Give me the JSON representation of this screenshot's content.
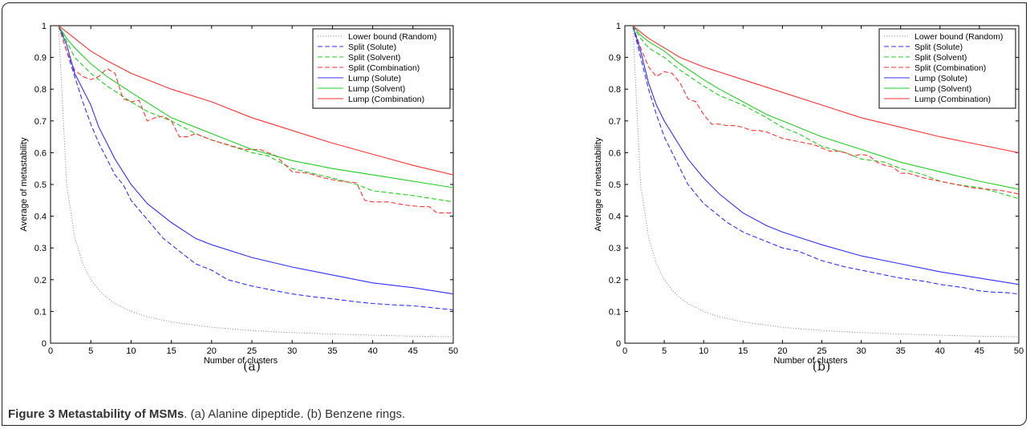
{
  "figure": {
    "caption_label": "Figure 3",
    "caption_title": "Metastability of MSMs",
    "caption_text": ". (a) Alanine dipeptide. (b) Benzene rings."
  },
  "legend_labels": [
    "Lower bound (Random)",
    "Split (Solute)",
    "Split (Solvent)",
    "Split (Combination)",
    "Lump (Solute)",
    "Lump (Solvent)",
    "Lump (Combination)"
  ],
  "colors": {
    "random": "#888888",
    "solute": "#3030ff",
    "solvent": "#22cc22",
    "combination": "#ff3333"
  },
  "chart_data": [
    {
      "type": "line",
      "panel_label": "(a)",
      "xlabel": "Number of clusters",
      "ylabel": "Average of metastability",
      "xlim": [
        0,
        50
      ],
      "ylim": [
        0,
        1
      ],
      "xticks": [
        "0",
        "5",
        "10",
        "15",
        "20",
        "25",
        "30",
        "35",
        "40",
        "45",
        "50"
      ],
      "yticks": [
        "0",
        "0.1",
        "0.2",
        "0.3",
        "0.4",
        "0.5",
        "0.6",
        "0.7",
        "0.8",
        "0.9",
        "1"
      ],
      "legend_position": "top-right",
      "series": [
        {
          "name": "Lower bound (Random)",
          "style": "dotted",
          "color": "#888888",
          "x": [
            1,
            2,
            3,
            4,
            5,
            6,
            7,
            8,
            10,
            12,
            15,
            20,
            25,
            30,
            35,
            40,
            45,
            50
          ],
          "y": [
            1,
            0.5,
            0.333,
            0.25,
            0.2,
            0.167,
            0.143,
            0.125,
            0.1,
            0.083,
            0.067,
            0.05,
            0.04,
            0.033,
            0.029,
            0.025,
            0.022,
            0.02
          ]
        },
        {
          "name": "Split (Solute)",
          "style": "dashed",
          "color": "#3030ff",
          "x": [
            1,
            2,
            3,
            4,
            5,
            6,
            7,
            8,
            9,
            10,
            12,
            14,
            16,
            18,
            20,
            22,
            25,
            28,
            30,
            33,
            35,
            38,
            40,
            43,
            45,
            48,
            50
          ],
          "y": [
            1,
            0.92,
            0.84,
            0.76,
            0.69,
            0.63,
            0.58,
            0.53,
            0.5,
            0.45,
            0.39,
            0.33,
            0.29,
            0.25,
            0.23,
            0.2,
            0.18,
            0.165,
            0.155,
            0.145,
            0.14,
            0.13,
            0.125,
            0.12,
            0.118,
            0.11,
            0.105
          ]
        },
        {
          "name": "Split (Solvent)",
          "style": "dashed",
          "color": "#22cc22",
          "x": [
            1,
            2,
            3,
            5,
            7,
            10,
            12,
            15,
            18,
            20,
            25,
            27,
            30,
            35,
            38,
            40,
            45,
            50
          ],
          "y": [
            1,
            0.95,
            0.9,
            0.85,
            0.81,
            0.76,
            0.73,
            0.7,
            0.66,
            0.64,
            0.6,
            0.59,
            0.55,
            0.52,
            0.5,
            0.48,
            0.465,
            0.445
          ]
        },
        {
          "name": "Split (Combination)",
          "style": "dashed",
          "color": "#ff3333",
          "x": [
            1,
            2,
            3,
            4,
            5,
            6,
            7,
            8,
            9,
            10,
            11,
            12,
            13,
            14,
            15,
            16,
            17,
            18,
            20,
            22,
            24,
            26,
            27,
            28,
            30,
            32,
            34,
            36,
            38,
            39,
            40,
            42,
            44,
            46,
            47,
            48,
            50
          ],
          "y": [
            1,
            0.92,
            0.86,
            0.84,
            0.83,
            0.84,
            0.865,
            0.85,
            0.77,
            0.76,
            0.765,
            0.7,
            0.71,
            0.715,
            0.7,
            0.65,
            0.65,
            0.66,
            0.64,
            0.625,
            0.61,
            0.61,
            0.6,
            0.59,
            0.54,
            0.535,
            0.52,
            0.51,
            0.505,
            0.45,
            0.445,
            0.445,
            0.435,
            0.43,
            0.43,
            0.41,
            0.41
          ]
        },
        {
          "name": "Lump (Solute)",
          "style": "solid",
          "color": "#3030ff",
          "x": [
            1,
            2,
            3,
            4,
            5,
            6,
            7,
            8,
            10,
            12,
            15,
            18,
            20,
            25,
            30,
            35,
            40,
            45,
            50
          ],
          "y": [
            1,
            0.94,
            0.85,
            0.8,
            0.75,
            0.68,
            0.63,
            0.58,
            0.5,
            0.44,
            0.38,
            0.33,
            0.31,
            0.27,
            0.24,
            0.215,
            0.19,
            0.175,
            0.155
          ]
        },
        {
          "name": "Lump (Solvent)",
          "style": "solid",
          "color": "#22cc22",
          "x": [
            1,
            2,
            3,
            5,
            7,
            10,
            15,
            20,
            25,
            30,
            35,
            40,
            45,
            50
          ],
          "y": [
            1,
            0.96,
            0.93,
            0.88,
            0.84,
            0.79,
            0.71,
            0.66,
            0.61,
            0.575,
            0.55,
            0.53,
            0.51,
            0.49
          ]
        },
        {
          "name": "Lump (Combination)",
          "style": "solid",
          "color": "#ff3333",
          "x": [
            1,
            2,
            3,
            5,
            7,
            10,
            15,
            20,
            25,
            30,
            35,
            40,
            45,
            50
          ],
          "y": [
            1,
            0.98,
            0.96,
            0.92,
            0.89,
            0.85,
            0.8,
            0.76,
            0.71,
            0.67,
            0.63,
            0.595,
            0.56,
            0.53
          ]
        }
      ]
    },
    {
      "type": "line",
      "panel_label": "(b)",
      "xlabel": "Number of clusters",
      "ylabel": "Average of metastability",
      "xlim": [
        0,
        50
      ],
      "ylim": [
        0,
        1
      ],
      "xticks": [
        "0",
        "5",
        "10",
        "15",
        "20",
        "25",
        "30",
        "35",
        "40",
        "45",
        "50"
      ],
      "yticks": [
        "0",
        "0.1",
        "0.2",
        "0.3",
        "0.4",
        "0.5",
        "0.6",
        "0.7",
        "0.8",
        "0.9",
        "1"
      ],
      "legend_position": "top-right",
      "series": [
        {
          "name": "Lower bound (Random)",
          "style": "dotted",
          "color": "#888888",
          "x": [
            1,
            2,
            3,
            4,
            5,
            6,
            7,
            8,
            10,
            12,
            15,
            20,
            25,
            30,
            35,
            40,
            45,
            50
          ],
          "y": [
            1,
            0.5,
            0.333,
            0.25,
            0.2,
            0.167,
            0.143,
            0.125,
            0.1,
            0.083,
            0.067,
            0.05,
            0.04,
            0.033,
            0.029,
            0.025,
            0.022,
            0.02
          ]
        },
        {
          "name": "Split (Solute)",
          "style": "dashed",
          "color": "#3030ff",
          "x": [
            1,
            2,
            3,
            4,
            5,
            6,
            7,
            8,
            9,
            10,
            12,
            13,
            15,
            18,
            20,
            22,
            25,
            28,
            30,
            33,
            35,
            38,
            40,
            43,
            45,
            47,
            48,
            50
          ],
          "y": [
            1,
            0.9,
            0.8,
            0.72,
            0.65,
            0.6,
            0.55,
            0.5,
            0.47,
            0.44,
            0.4,
            0.38,
            0.35,
            0.32,
            0.3,
            0.29,
            0.26,
            0.24,
            0.23,
            0.215,
            0.205,
            0.195,
            0.185,
            0.175,
            0.165,
            0.16,
            0.16,
            0.155
          ]
        },
        {
          "name": "Split (Solvent)",
          "style": "dashed",
          "color": "#22cc22",
          "x": [
            1,
            2,
            3,
            5,
            7,
            10,
            12,
            15,
            18,
            20,
            22,
            25,
            28,
            30,
            33,
            35,
            38,
            40,
            42,
            45,
            48,
            50
          ],
          "y": [
            1,
            0.96,
            0.93,
            0.9,
            0.86,
            0.81,
            0.78,
            0.75,
            0.71,
            0.68,
            0.66,
            0.62,
            0.6,
            0.58,
            0.57,
            0.55,
            0.53,
            0.51,
            0.5,
            0.49,
            0.47,
            0.455
          ]
        },
        {
          "name": "Split (Combination)",
          "style": "dashed",
          "color": "#ff3333",
          "x": [
            1,
            2,
            3,
            4,
            5,
            6,
            7,
            8,
            9,
            10,
            11,
            12,
            13,
            14,
            15,
            16,
            17,
            18,
            19,
            20,
            21,
            22,
            23,
            24,
            25,
            26,
            27,
            28,
            29,
            30,
            31,
            32,
            33,
            34,
            35,
            36,
            38,
            40,
            42,
            44,
            46,
            48,
            50
          ],
          "y": [
            1,
            0.93,
            0.87,
            0.84,
            0.855,
            0.85,
            0.82,
            0.77,
            0.76,
            0.72,
            0.69,
            0.69,
            0.685,
            0.685,
            0.68,
            0.67,
            0.67,
            0.665,
            0.655,
            0.645,
            0.64,
            0.635,
            0.63,
            0.625,
            0.615,
            0.605,
            0.605,
            0.6,
            0.59,
            0.595,
            0.59,
            0.57,
            0.56,
            0.555,
            0.535,
            0.535,
            0.52,
            0.51,
            0.5,
            0.49,
            0.485,
            0.48,
            0.47
          ]
        },
        {
          "name": "Lump (Solute)",
          "style": "solid",
          "color": "#3030ff",
          "x": [
            1,
            2,
            3,
            4,
            5,
            6,
            7,
            8,
            10,
            12,
            15,
            18,
            20,
            25,
            30,
            35,
            40,
            45,
            50
          ],
          "y": [
            1,
            0.92,
            0.82,
            0.75,
            0.7,
            0.66,
            0.62,
            0.58,
            0.52,
            0.47,
            0.41,
            0.37,
            0.35,
            0.31,
            0.275,
            0.25,
            0.225,
            0.205,
            0.185
          ]
        },
        {
          "name": "Lump (Solvent)",
          "style": "solid",
          "color": "#22cc22",
          "x": [
            1,
            2,
            3,
            5,
            7,
            10,
            12,
            15,
            18,
            20,
            25,
            30,
            35,
            40,
            45,
            50
          ],
          "y": [
            1,
            0.97,
            0.95,
            0.92,
            0.88,
            0.83,
            0.8,
            0.76,
            0.72,
            0.7,
            0.65,
            0.61,
            0.57,
            0.54,
            0.51,
            0.485
          ]
        },
        {
          "name": "Lump (Combination)",
          "style": "solid",
          "color": "#ff3333",
          "x": [
            1,
            2,
            3,
            5,
            7,
            10,
            15,
            20,
            25,
            30,
            35,
            40,
            45,
            50
          ],
          "y": [
            1,
            0.98,
            0.96,
            0.93,
            0.9,
            0.87,
            0.83,
            0.79,
            0.75,
            0.71,
            0.68,
            0.65,
            0.625,
            0.6
          ]
        }
      ]
    }
  ]
}
